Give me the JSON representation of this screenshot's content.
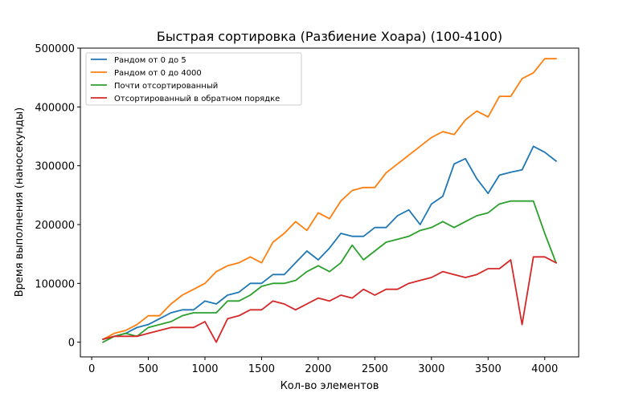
{
  "chart_data": {
    "type": "line",
    "title": "Быстрая сортировка (Разбиение Хоара) (100-4100)",
    "xlabel": "Кол-во элементов",
    "ylabel": "Время выполнения (наносекунды)",
    "xlim": [
      -100,
      4300
    ],
    "ylim": [
      -25000,
      500000
    ],
    "xticks": [
      0,
      500,
      1000,
      1500,
      2000,
      2500,
      3000,
      3500,
      4000
    ],
    "yticks": [
      0,
      100000,
      200000,
      300000,
      400000,
      500000
    ],
    "grid": false,
    "legend_position": "top-left",
    "x": [
      100,
      200,
      300,
      400,
      500,
      600,
      700,
      800,
      900,
      1000,
      1100,
      1200,
      1300,
      1400,
      1500,
      1600,
      1700,
      1800,
      1900,
      2000,
      2100,
      2200,
      2300,
      2400,
      2500,
      2600,
      2700,
      2800,
      2900,
      3000,
      3100,
      3200,
      3300,
      3400,
      3500,
      3600,
      3700,
      3800,
      3900,
      4000,
      4100
    ],
    "series": [
      {
        "name": "Рандом от 0 до 5",
        "color": "#1f77b4",
        "values": [
          5000,
          10000,
          15000,
          25000,
          30000,
          40000,
          50000,
          55000,
          55000,
          70000,
          65000,
          80000,
          85000,
          100000,
          100000,
          115000,
          115000,
          135000,
          155000,
          140000,
          160000,
          185000,
          180000,
          180000,
          195000,
          195000,
          215000,
          225000,
          200000,
          235000,
          248000,
          303000,
          312000,
          278000,
          253000,
          284000,
          289000,
          293000,
          333000,
          323000,
          308000
        ]
      },
      {
        "name": "Рандом от 0 до 4000",
        "color": "#ff7f0e",
        "values": [
          5000,
          15000,
          20000,
          30000,
          45000,
          45000,
          65000,
          80000,
          90000,
          100000,
          120000,
          130000,
          135000,
          145000,
          135000,
          170000,
          185000,
          205000,
          190000,
          220000,
          210000,
          240000,
          258000,
          263000,
          263000,
          288000,
          303000,
          318000,
          333000,
          348000,
          358000,
          353000,
          378000,
          393000,
          383000,
          418000,
          418000,
          448000,
          458000,
          482000,
          482000
        ]
      },
      {
        "name": "Почти отсортированный",
        "color": "#2ca02c",
        "values": [
          0,
          10000,
          15000,
          10000,
          25000,
          30000,
          35000,
          45000,
          50000,
          50000,
          50000,
          70000,
          70000,
          80000,
          95000,
          100000,
          100000,
          105000,
          120000,
          130000,
          120000,
          135000,
          165000,
          140000,
          155000,
          170000,
          175000,
          180000,
          190000,
          195000,
          205000,
          195000,
          205000,
          215000,
          220000,
          235000,
          240000,
          240000,
          240000,
          185000,
          135000
        ]
      },
      {
        "name": "Отсортированный в обратном порядке",
        "color": "#d62728",
        "values": [
          5000,
          10000,
          10000,
          10000,
          15000,
          20000,
          25000,
          25000,
          25000,
          35000,
          0,
          40000,
          45000,
          55000,
          55000,
          70000,
          65000,
          55000,
          65000,
          75000,
          70000,
          80000,
          75000,
          90000,
          80000,
          90000,
          90000,
          100000,
          105000,
          110000,
          120000,
          115000,
          110000,
          115000,
          125000,
          125000,
          140000,
          30000,
          145000,
          145000,
          135000
        ]
      }
    ]
  }
}
